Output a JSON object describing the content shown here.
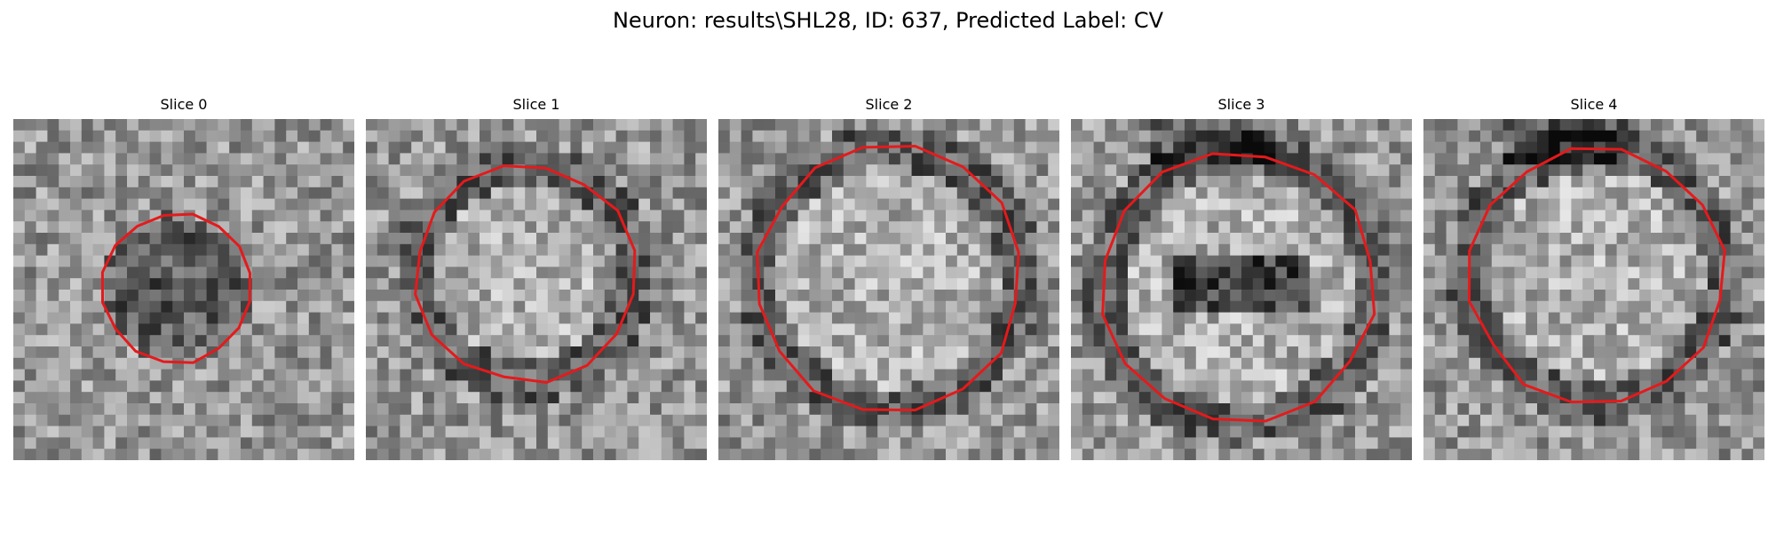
{
  "figure": {
    "title": "Neuron: results\\SHL28, ID: 637, Predicted Label: CV"
  },
  "slices": [
    {
      "label": "Slice 0",
      "seed": 11,
      "dark_center": true,
      "ring": false,
      "outline_color": "#e41a1c"
    },
    {
      "label": "Slice 1",
      "seed": 23,
      "dark_center": false,
      "ring": true,
      "outline_color": "#e41a1c"
    },
    {
      "label": "Slice 2",
      "seed": 37,
      "dark_center": false,
      "ring": true,
      "outline_color": "#e41a1c"
    },
    {
      "label": "Slice 3",
      "seed": 41,
      "dark_center": true,
      "ring": true,
      "outline_color": "#e41a1c"
    },
    {
      "label": "Slice 4",
      "seed": 53,
      "dark_center": false,
      "ring": true,
      "outline_color": "#e41a1c"
    }
  ]
}
